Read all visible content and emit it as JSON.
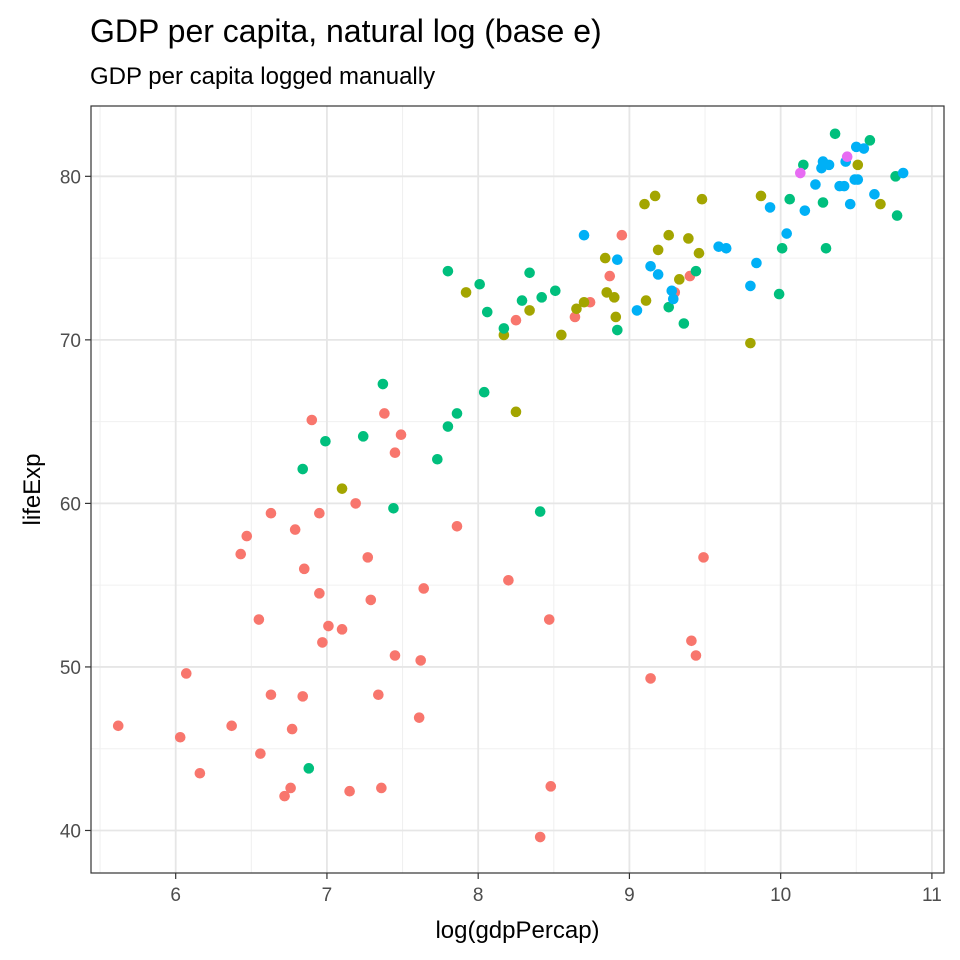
{
  "chart_data": {
    "type": "scatter",
    "title": "GDP per capita, natural log (base e)",
    "subtitle": "GDP per capita logged manually",
    "xlabel": "log(gdpPercap)",
    "ylabel": "lifeExp",
    "xlim": [
      5.44,
      11.08
    ],
    "ylim": [
      37.4,
      84.3
    ],
    "x_ticks": [
      6,
      7,
      8,
      9,
      10,
      11
    ],
    "y_ticks": [
      40,
      50,
      60,
      70,
      80
    ],
    "grid": true,
    "legend": "none",
    "series": [
      {
        "color": "#F8766D",
        "points": [
          [
            5.62,
            46.4
          ],
          [
            6.03,
            45.7
          ],
          [
            6.07,
            49.6
          ],
          [
            6.16,
            43.5
          ],
          [
            6.37,
            46.4
          ],
          [
            6.43,
            56.9
          ],
          [
            6.47,
            58.0
          ],
          [
            6.55,
            52.9
          ],
          [
            6.56,
            44.7
          ],
          [
            6.63,
            48.3
          ],
          [
            6.63,
            59.4
          ],
          [
            6.72,
            42.1
          ],
          [
            6.76,
            42.6
          ],
          [
            6.77,
            46.2
          ],
          [
            6.79,
            58.4
          ],
          [
            6.84,
            48.2
          ],
          [
            6.85,
            56.0
          ],
          [
            6.9,
            65.1
          ],
          [
            6.95,
            54.5
          ],
          [
            6.95,
            59.4
          ],
          [
            6.97,
            51.5
          ],
          [
            7.01,
            52.5
          ],
          [
            7.1,
            52.3
          ],
          [
            7.15,
            42.4
          ],
          [
            7.19,
            60.0
          ],
          [
            7.27,
            56.7
          ],
          [
            7.29,
            54.1
          ],
          [
            7.34,
            48.3
          ],
          [
            7.36,
            42.6
          ],
          [
            7.38,
            65.5
          ],
          [
            7.45,
            50.7
          ],
          [
            7.45,
            63.1
          ],
          [
            7.49,
            64.2
          ],
          [
            7.61,
            46.9
          ],
          [
            7.62,
            50.4
          ],
          [
            7.64,
            54.8
          ],
          [
            7.86,
            58.6
          ],
          [
            8.2,
            55.3
          ],
          [
            8.25,
            71.2
          ],
          [
            8.41,
            39.6
          ],
          [
            8.47,
            52.9
          ],
          [
            8.48,
            42.7
          ],
          [
            8.64,
            71.4
          ],
          [
            8.74,
            72.3
          ],
          [
            8.87,
            73.9
          ],
          [
            8.95,
            76.4
          ],
          [
            9.14,
            49.3
          ],
          [
            9.3,
            72.9
          ],
          [
            9.4,
            73.9
          ],
          [
            9.41,
            51.6
          ],
          [
            9.44,
            50.7
          ],
          [
            9.49,
            56.7
          ]
        ]
      },
      {
        "color": "#A3A500",
        "points": [
          [
            7.1,
            60.9
          ],
          [
            7.92,
            72.9
          ],
          [
            8.17,
            70.3
          ],
          [
            8.25,
            65.6
          ],
          [
            8.34,
            71.8
          ],
          [
            8.55,
            70.3
          ],
          [
            8.65,
            71.9
          ],
          [
            8.7,
            72.3
          ],
          [
            8.84,
            75.0
          ],
          [
            8.85,
            72.9
          ],
          [
            8.9,
            72.6
          ],
          [
            8.91,
            71.4
          ],
          [
            9.1,
            78.3
          ],
          [
            9.11,
            72.4
          ],
          [
            9.17,
            78.8
          ],
          [
            9.19,
            75.5
          ],
          [
            9.26,
            76.4
          ],
          [
            9.33,
            73.7
          ],
          [
            9.39,
            76.2
          ],
          [
            9.46,
            75.3
          ],
          [
            9.48,
            78.6
          ],
          [
            9.8,
            69.8
          ],
          [
            9.87,
            78.8
          ],
          [
            10.51,
            80.7
          ],
          [
            10.66,
            78.3
          ]
        ]
      },
      {
        "color": "#00BF7D",
        "points": [
          [
            6.84,
            62.1
          ],
          [
            6.88,
            43.8
          ],
          [
            6.99,
            63.8
          ],
          [
            7.24,
            64.1
          ],
          [
            7.37,
            67.3
          ],
          [
            7.44,
            59.7
          ],
          [
            7.73,
            62.7
          ],
          [
            7.8,
            64.7
          ],
          [
            7.8,
            74.2
          ],
          [
            7.86,
            65.5
          ],
          [
            8.01,
            73.4
          ],
          [
            8.04,
            66.8
          ],
          [
            8.06,
            71.7
          ],
          [
            8.17,
            70.7
          ],
          [
            8.29,
            72.4
          ],
          [
            8.34,
            74.1
          ],
          [
            8.41,
            59.5
          ],
          [
            8.42,
            72.6
          ],
          [
            8.51,
            73.0
          ],
          [
            8.92,
            70.6
          ],
          [
            9.26,
            72.0
          ],
          [
            9.36,
            71.0
          ],
          [
            9.44,
            74.2
          ],
          [
            9.99,
            72.8
          ],
          [
            10.01,
            75.6
          ],
          [
            10.06,
            78.6
          ],
          [
            10.15,
            80.7
          ],
          [
            10.28,
            78.4
          ],
          [
            10.3,
            75.6
          ],
          [
            10.36,
            82.6
          ],
          [
            10.59,
            82.2
          ],
          [
            10.76,
            80.0
          ],
          [
            10.77,
            77.6
          ]
        ]
      },
      {
        "color": "#00B0F6",
        "points": [
          [
            8.7,
            76.4
          ],
          [
            8.92,
            74.9
          ],
          [
            9.05,
            71.8
          ],
          [
            9.14,
            74.5
          ],
          [
            9.19,
            74.0
          ],
          [
            9.28,
            73.0
          ],
          [
            9.29,
            72.5
          ],
          [
            9.59,
            75.7
          ],
          [
            9.64,
            75.6
          ],
          [
            9.8,
            73.3
          ],
          [
            9.84,
            74.7
          ],
          [
            9.93,
            78.1
          ],
          [
            10.04,
            76.5
          ],
          [
            10.16,
            77.9
          ],
          [
            10.23,
            79.5
          ],
          [
            10.27,
            80.5
          ],
          [
            10.28,
            80.9
          ],
          [
            10.32,
            80.7
          ],
          [
            10.39,
            79.4
          ],
          [
            10.42,
            79.4
          ],
          [
            10.43,
            80.9
          ],
          [
            10.46,
            78.3
          ],
          [
            10.49,
            79.8
          ],
          [
            10.5,
            81.8
          ],
          [
            10.51,
            79.8
          ],
          [
            10.55,
            81.7
          ],
          [
            10.62,
            78.9
          ],
          [
            10.81,
            80.2
          ]
        ]
      },
      {
        "color": "#E76BF3",
        "points": [
          [
            10.13,
            80.2
          ],
          [
            10.44,
            81.2
          ]
        ]
      }
    ]
  }
}
